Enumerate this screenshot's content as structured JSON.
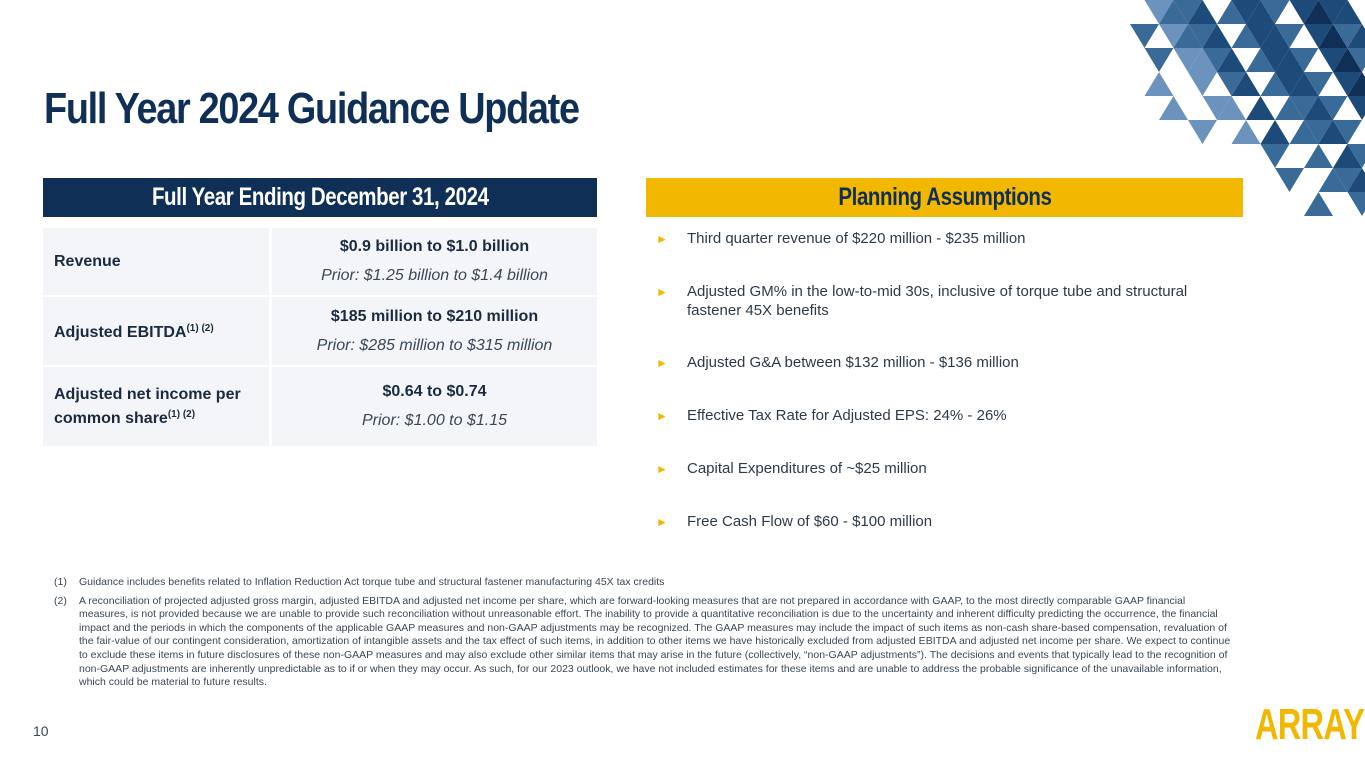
{
  "title": "Full Year 2024 Guidance Update",
  "left_header": "Full Year Ending December 31, 2024",
  "right_header": "Planning Assumptions",
  "guidance": [
    {
      "label": "Revenue",
      "sup": "",
      "current": "$0.9 billion to $1.0 billion",
      "prior": "Prior: $1.25 billion to $1.4 billion"
    },
    {
      "label": "Adjusted EBITDA",
      "sup": "(1) (2)",
      "current": "$185 million to $210 million",
      "prior": "Prior: $285 million to $315 million"
    },
    {
      "label": "Adjusted net income per common share",
      "sup": "(1) (2)",
      "current": "$0.64 to $0.74",
      "prior": "Prior: $1.00 to $1.15"
    }
  ],
  "assumptions": [
    "Third quarter revenue of $220 million - $235 million",
    "Adjusted GM% in the low-to-mid 30s, inclusive of torque tube and structural fastener 45X benefits",
    "Adjusted G&A between $132 million - $136 million",
    "Effective Tax Rate for Adjusted EPS: 24% - 26%",
    "Capital Expenditures of ~$25 million",
    "Free Cash Flow of $60 - $100 million"
  ],
  "footnotes": [
    {
      "num": "(1)",
      "text": "Guidance includes benefits related to Inflation Reduction Act torque tube and structural fastener manufacturing 45X tax credits"
    },
    {
      "num": "(2)",
      "text": "A reconciliation of projected adjusted gross margin, adjusted EBITDA and adjusted net income per share, which are forward-looking measures that are not prepared in accordance with GAAP, to the most directly comparable GAAP financial measures, is not provided because we are unable to provide such reconciliation without unreasonable effort. The inability to provide a quantitative reconciliation is due to the uncertainty and inherent difficulty predicting the occurrence, the financial impact and the periods in which the components of the applicable GAAP measures and non-GAAP adjustments may be recognized. The GAAP measures may include the impact of such items as non-cash share-based compensation, revaluation of the fair-value of our contingent consideration, amortization of intangible assets and the tax effect of such items, in addition to other items we have historically excluded from adjusted EBITDA and adjusted net income per share. We expect to continue to exclude these items in future disclosures of these non-GAAP measures and may also exclude other similar items that may arise in the future (collectively, “non-GAAP adjustments”). The decisions and events that typically lead to the recognition of non-GAAP adjustments are inherently unpredictable as to if or when they may occur. As such, for our 2023 outlook, we have not included estimates for these items and are unable to address the probable significance of the unavailable information, which could be material to future results."
    }
  ],
  "page_number": "10",
  "logo_text": "ARRAY",
  "colors": {
    "navy": "#0f2f57",
    "gold": "#f2b700",
    "light_blue": "#d4e0ec",
    "mid_blue": "#6b93bd"
  }
}
